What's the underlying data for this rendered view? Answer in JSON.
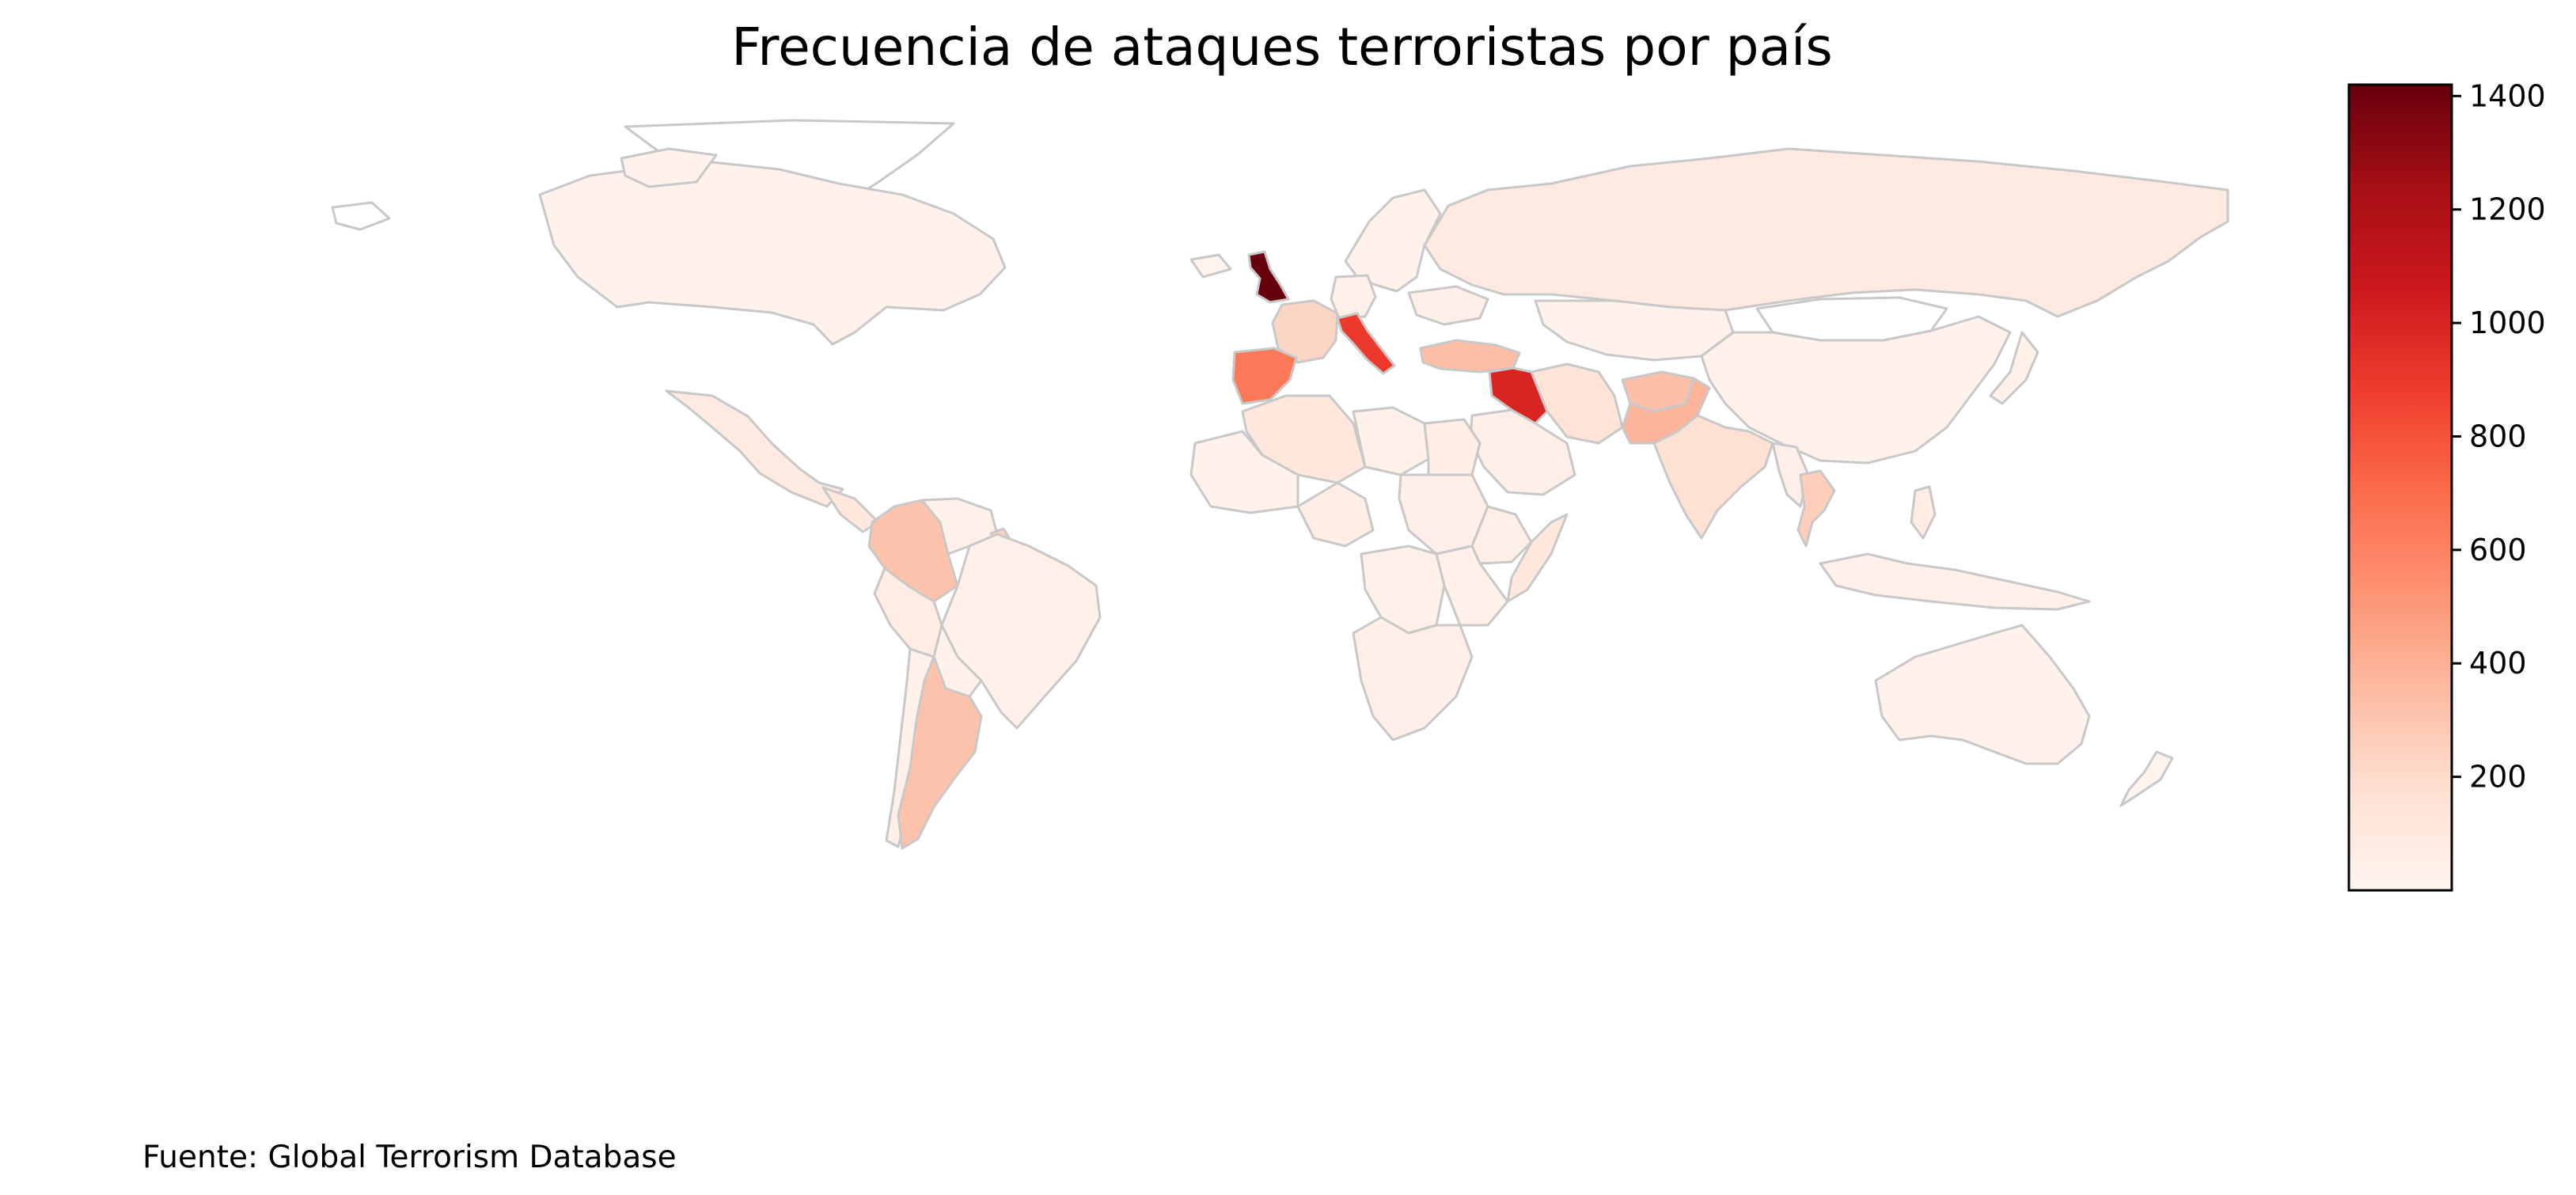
{
  "chart_data": {
    "type": "choropleth",
    "title": "Frecuencia de ataques terroristas por país",
    "source": "Fuente: Global Terrorism Database",
    "colorbar": {
      "colormap": "Reds",
      "min": 0,
      "max": 1420,
      "ticks": [
        "200",
        "400",
        "600",
        "800",
        "1000",
        "1200",
        "1400"
      ],
      "tick_values": [
        200,
        400,
        600,
        800,
        1000,
        1200,
        1400
      ]
    },
    "regions": [
      {
        "name": "United Kingdom",
        "value": 1420
      },
      {
        "name": "Iraq",
        "value": 1000
      },
      {
        "name": "Italy",
        "value": 900
      },
      {
        "name": "Spain",
        "value": 650
      },
      {
        "name": "Pakistan",
        "value": 380
      },
      {
        "name": "Afghanistan",
        "value": 330
      },
      {
        "name": "Colombia",
        "value": 320
      },
      {
        "name": "Argentina",
        "value": 320
      },
      {
        "name": "Turkey",
        "value": 340
      },
      {
        "name": "France",
        "value": 230
      },
      {
        "name": "Thailand",
        "value": 260
      },
      {
        "name": "India",
        "value": 170
      },
      {
        "name": "Iran",
        "value": 150
      },
      {
        "name": "Guyana",
        "value": 250
      },
      {
        "name": "Algeria",
        "value": 110
      },
      {
        "name": "Russia",
        "value": 90
      },
      {
        "name": "Mexico",
        "value": 90
      },
      {
        "name": "Peru",
        "value": 80
      },
      {
        "name": "Somalia",
        "value": 110
      },
      {
        "name": "Philippines",
        "value": 70
      },
      {
        "name": "Egypt",
        "value": 60
      },
      {
        "name": "Canada",
        "value": 30
      },
      {
        "name": "Brazil",
        "value": 40
      },
      {
        "name": "China",
        "value": 30
      },
      {
        "name": "Australia",
        "value": 30
      },
      {
        "name": "Kazakhstan",
        "value": 30
      },
      {
        "name": "Germany",
        "value": 40
      },
      {
        "name": "Chile",
        "value": 40
      },
      {
        "name": "Bolivia",
        "value": 30
      },
      {
        "name": "Venezuela",
        "value": 40
      },
      {
        "name": "Saudi Arabia",
        "value": 50
      },
      {
        "name": "Libya",
        "value": 40
      },
      {
        "name": "Nigeria",
        "value": 60
      },
      {
        "name": "Sudan",
        "value": 50
      },
      {
        "name": "Ethiopia",
        "value": 50
      },
      {
        "name": "DR Congo",
        "value": 40
      },
      {
        "name": "South Africa",
        "value": 50
      },
      {
        "name": "Kenya",
        "value": 40
      },
      {
        "name": "Mali",
        "value": 30
      },
      {
        "name": "Indonesia",
        "value": 40
      },
      {
        "name": "Myanmar",
        "value": 50
      },
      {
        "name": "Mongolia",
        "value": 0
      },
      {
        "name": "Greenland",
        "value": 0
      },
      {
        "name": "Scandinavia",
        "value": 30
      },
      {
        "name": "Japan",
        "value": 40
      },
      {
        "name": "Ukraine",
        "value": 50
      },
      {
        "name": "New Zealand",
        "value": 20
      },
      {
        "name": "Iceland",
        "value": 20
      },
      {
        "name": "Argentina South",
        "value": 320
      },
      {
        "name": "Central America",
        "value": 110
      }
    ]
  }
}
